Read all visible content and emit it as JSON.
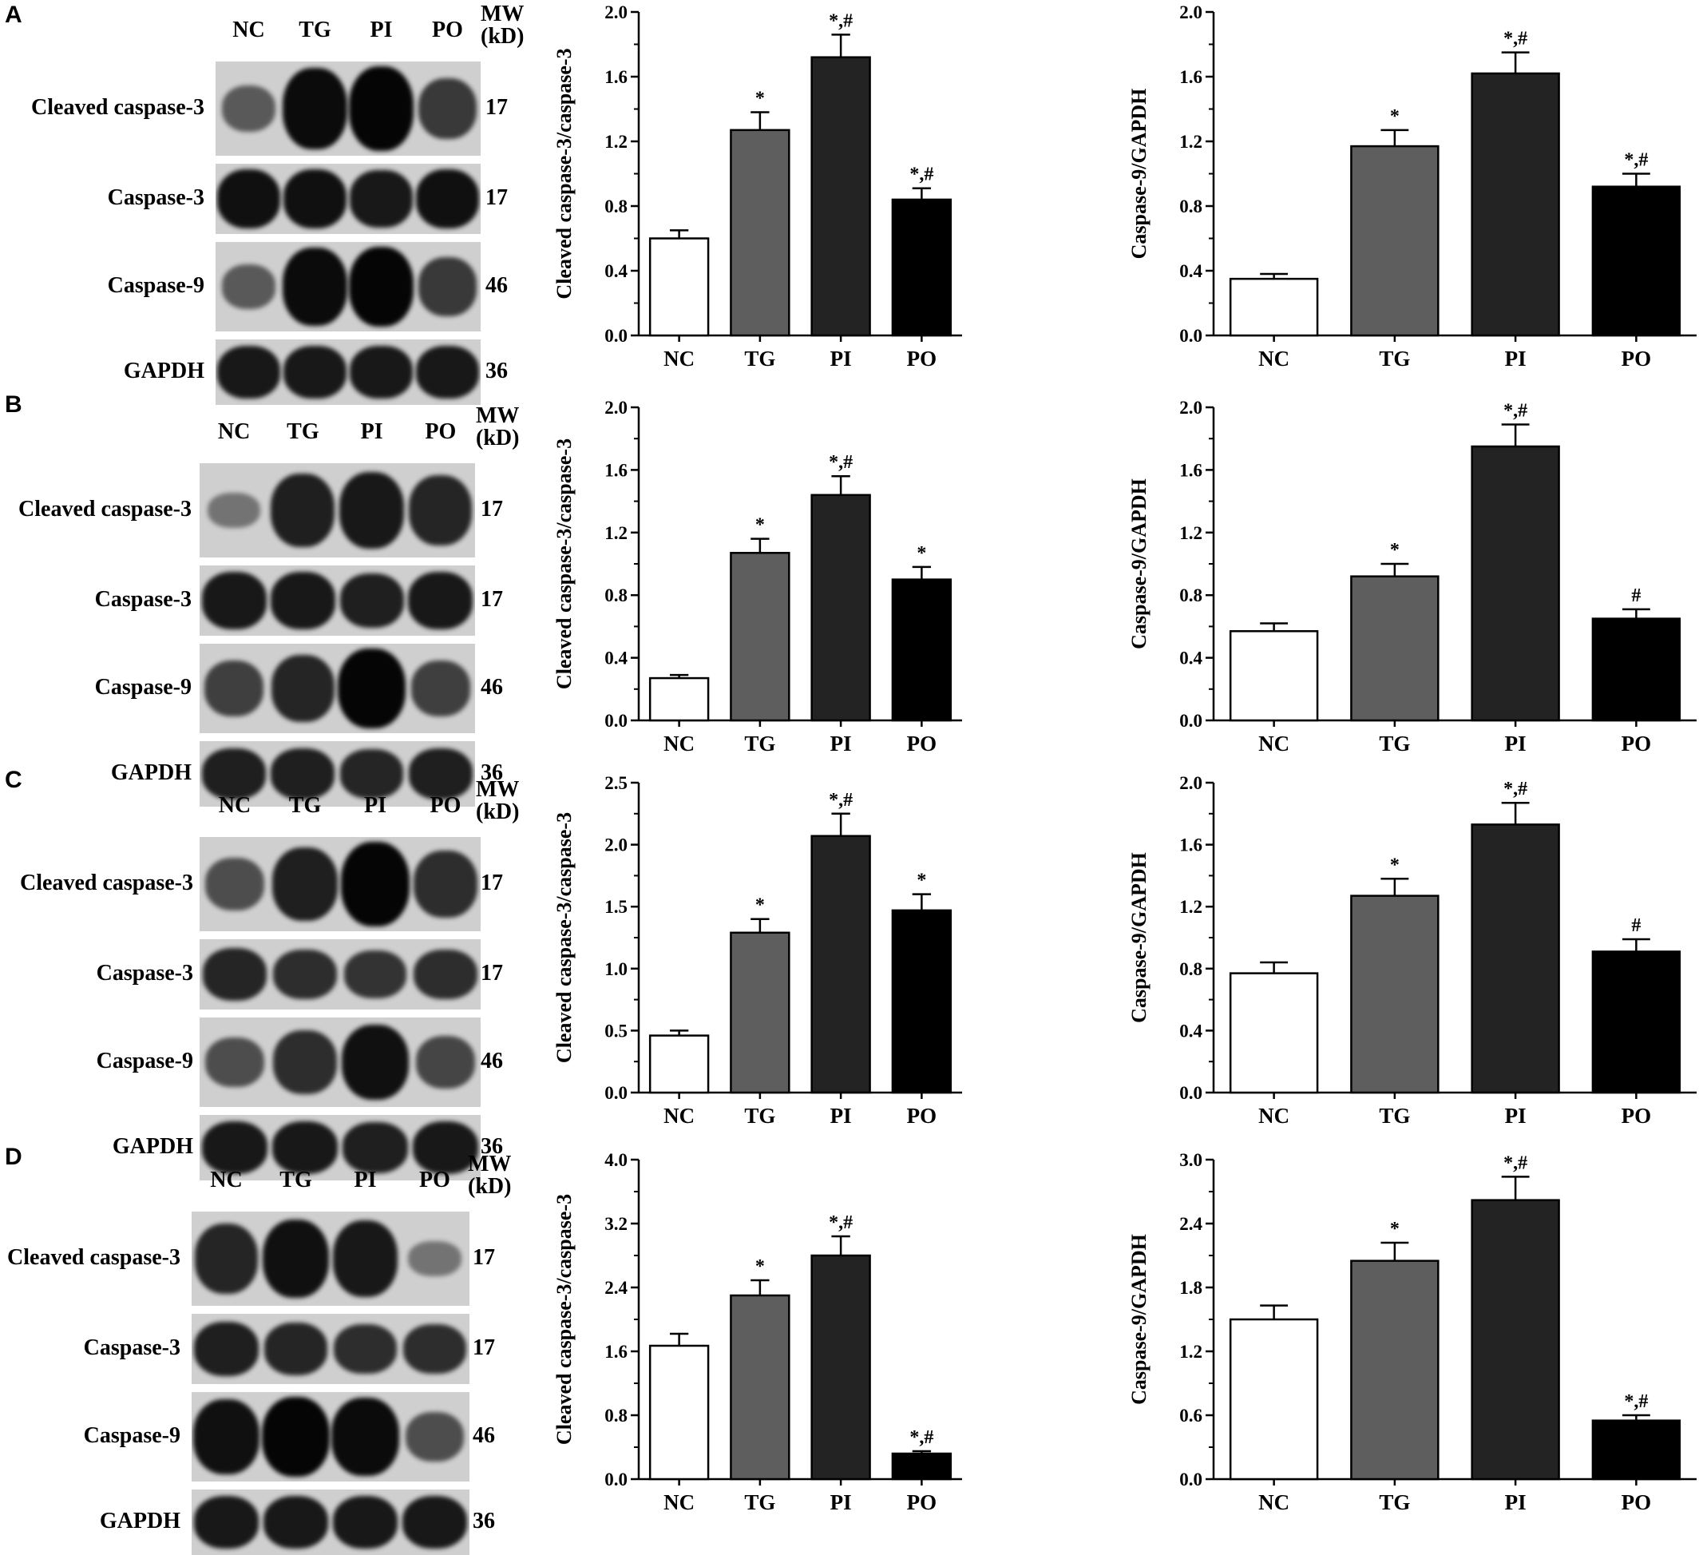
{
  "lanes": [
    "NC",
    "TG",
    "PI",
    "PO"
  ],
  "mw_label": [
    "MW",
    "(kD)"
  ],
  "blot_rows": [
    {
      "name": "Cleaved caspase-3",
      "mw": "17"
    },
    {
      "name": "Caspase-3",
      "mw": "17"
    },
    {
      "name": "Caspase-9",
      "mw": "46"
    },
    {
      "name": "GAPDH",
      "mw": "36"
    }
  ],
  "panels": [
    {
      "letter": "A",
      "intensity": [
        [
          0.35,
          0.95,
          1.0,
          0.6
        ],
        [
          0.9,
          0.9,
          0.85,
          0.9
        ],
        [
          0.35,
          0.95,
          1.0,
          0.6
        ],
        [
          0.85,
          0.85,
          0.85,
          0.85
        ]
      ]
    },
    {
      "letter": "B",
      "intensity": [
        [
          0.15,
          0.8,
          0.85,
          0.75
        ],
        [
          0.85,
          0.85,
          0.8,
          0.85
        ],
        [
          0.55,
          0.75,
          1.0,
          0.55
        ],
        [
          0.8,
          0.8,
          0.75,
          0.8
        ]
      ]
    },
    {
      "letter": "C",
      "intensity": [
        [
          0.45,
          0.8,
          1.0,
          0.7
        ],
        [
          0.75,
          0.7,
          0.65,
          0.7
        ],
        [
          0.45,
          0.7,
          0.9,
          0.5
        ],
        [
          0.85,
          0.85,
          0.8,
          0.85
        ]
      ]
    },
    {
      "letter": "D",
      "intensity": [
        [
          0.75,
          0.9,
          0.85,
          0.15
        ],
        [
          0.8,
          0.75,
          0.7,
          0.7
        ],
        [
          0.9,
          1.0,
          0.95,
          0.45
        ],
        [
          0.85,
          0.85,
          0.85,
          0.85
        ]
      ]
    }
  ],
  "chart_data": [
    {
      "type": "bar",
      "panel": "A",
      "ylabel": "Cleaved caspase-3/caspase-3",
      "categories": [
        "NC",
        "TG",
        "PI",
        "PO"
      ],
      "values": [
        0.6,
        1.27,
        1.72,
        0.84
      ],
      "errors": [
        0.05,
        0.11,
        0.14,
        0.07
      ],
      "annotations": [
        "",
        "*",
        "*,#",
        "*,#"
      ],
      "ylim": [
        0,
        2.0
      ],
      "yticks": [
        "0.0",
        "0.4",
        "0.8",
        "1.2",
        "1.6",
        "2.0"
      ],
      "bar_colors": [
        "#ffffff",
        "#5e5e5e",
        "#232323",
        "#000000"
      ]
    },
    {
      "type": "bar",
      "panel": "A",
      "ylabel": "Caspase-9/GAPDH",
      "categories": [
        "NC",
        "TG",
        "PI",
        "PO"
      ],
      "values": [
        0.35,
        1.17,
        1.62,
        0.92
      ],
      "errors": [
        0.03,
        0.1,
        0.13,
        0.08
      ],
      "annotations": [
        "",
        "*",
        "*,#",
        "*,#"
      ],
      "ylim": [
        0,
        2.0
      ],
      "yticks": [
        "0.0",
        "0.4",
        "0.8",
        "1.2",
        "1.6",
        "2.0"
      ],
      "bar_colors": [
        "#ffffff",
        "#5e5e5e",
        "#232323",
        "#000000"
      ]
    },
    {
      "type": "bar",
      "panel": "B",
      "ylabel": "Cleaved caspase-3/caspase-3",
      "categories": [
        "NC",
        "TG",
        "PI",
        "PO"
      ],
      "values": [
        0.27,
        1.07,
        1.44,
        0.9
      ],
      "errors": [
        0.02,
        0.09,
        0.12,
        0.08
      ],
      "annotations": [
        "",
        "*",
        "*,#",
        "*"
      ],
      "ylim": [
        0,
        2.0
      ],
      "yticks": [
        "0.0",
        "0.4",
        "0.8",
        "1.2",
        "1.6",
        "2.0"
      ],
      "bar_colors": [
        "#ffffff",
        "#5e5e5e",
        "#232323",
        "#000000"
      ]
    },
    {
      "type": "bar",
      "panel": "B",
      "ylabel": "Caspase-9/GAPDH",
      "categories": [
        "NC",
        "TG",
        "PI",
        "PO"
      ],
      "values": [
        0.57,
        0.92,
        1.75,
        0.65
      ],
      "errors": [
        0.05,
        0.08,
        0.14,
        0.06
      ],
      "annotations": [
        "",
        "*",
        "*,#",
        "#"
      ],
      "ylim": [
        0,
        2.0
      ],
      "yticks": [
        "0.0",
        "0.4",
        "0.8",
        "1.2",
        "1.6",
        "2.0"
      ],
      "bar_colors": [
        "#ffffff",
        "#5e5e5e",
        "#232323",
        "#000000"
      ]
    },
    {
      "type": "bar",
      "panel": "C",
      "ylabel": "Cleaved caspase-3/caspase-3",
      "categories": [
        "NC",
        "TG",
        "PI",
        "PO"
      ],
      "values": [
        0.46,
        1.29,
        2.07,
        1.47
      ],
      "errors": [
        0.04,
        0.11,
        0.18,
        0.13
      ],
      "annotations": [
        "",
        "*",
        "*,#",
        "*"
      ],
      "ylim": [
        0,
        2.5
      ],
      "yticks": [
        "0.0",
        "0.5",
        "1.0",
        "1.5",
        "2.0",
        "2.5"
      ],
      "bar_colors": [
        "#ffffff",
        "#5e5e5e",
        "#232323",
        "#000000"
      ]
    },
    {
      "type": "bar",
      "panel": "C",
      "ylabel": "Caspase-9/GAPDH",
      "categories": [
        "NC",
        "TG",
        "PI",
        "PO"
      ],
      "values": [
        0.77,
        1.27,
        1.73,
        0.91
      ],
      "errors": [
        0.07,
        0.11,
        0.14,
        0.08
      ],
      "annotations": [
        "",
        "*",
        "*,#",
        "#"
      ],
      "ylim": [
        0,
        2.0
      ],
      "yticks": [
        "0.0",
        "0.4",
        "0.8",
        "1.2",
        "1.6",
        "2.0"
      ],
      "bar_colors": [
        "#ffffff",
        "#5e5e5e",
        "#232323",
        "#000000"
      ]
    },
    {
      "type": "bar",
      "panel": "D",
      "ylabel": "Cleaved caspase-3/caspase-3",
      "categories": [
        "NC",
        "TG",
        "PI",
        "PO"
      ],
      "values": [
        1.67,
        2.3,
        2.8,
        0.32
      ],
      "errors": [
        0.15,
        0.19,
        0.24,
        0.03
      ],
      "annotations": [
        "",
        "*",
        "*,#",
        "*,#"
      ],
      "ylim": [
        0,
        4.0
      ],
      "yticks": [
        "0.0",
        "0.8",
        "1.6",
        "2.4",
        "3.2",
        "4.0"
      ],
      "bar_colors": [
        "#ffffff",
        "#5e5e5e",
        "#232323",
        "#000000"
      ]
    },
    {
      "type": "bar",
      "panel": "D",
      "ylabel": "Caspase-9/GAPDH",
      "categories": [
        "NC",
        "TG",
        "PI",
        "PO"
      ],
      "values": [
        1.5,
        2.05,
        2.62,
        0.55
      ],
      "errors": [
        0.13,
        0.17,
        0.22,
        0.05
      ],
      "annotations": [
        "",
        "*",
        "*,#",
        "*,#"
      ],
      "ylim": [
        0,
        3.0
      ],
      "yticks": [
        "0.0",
        "0.6",
        "1.2",
        "1.8",
        "2.4",
        "3.0"
      ],
      "bar_colors": [
        "#ffffff",
        "#5e5e5e",
        "#232323",
        "#000000"
      ]
    }
  ]
}
